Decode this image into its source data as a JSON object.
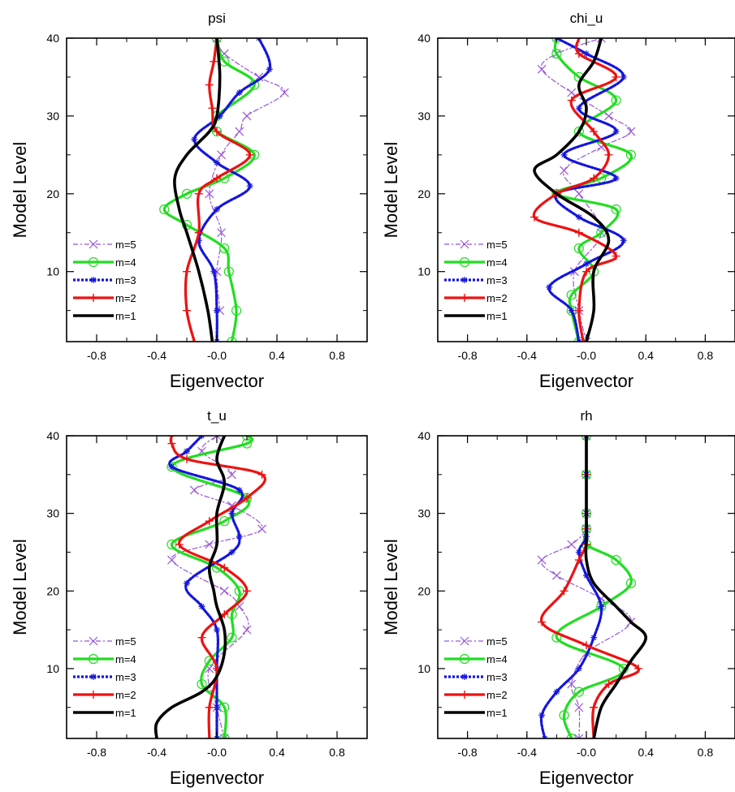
{
  "chart_data": [
    {
      "type": "line",
      "title": "psi",
      "xlabel": "Eigenvector",
      "ylabel": "Model Level",
      "xlim": [
        -1.0,
        1.0
      ],
      "ylim": [
        1,
        40
      ],
      "xticks": [
        "-0.8",
        "-0.4",
        "-0.0",
        "0.4",
        "0.8"
      ],
      "xtick_values": [
        -0.8,
        -0.4,
        0.0,
        0.4,
        0.8
      ],
      "yticks": [
        "10",
        "20",
        "30",
        "40"
      ],
      "ytick_values": [
        10,
        20,
        30,
        40
      ],
      "legend_position": "bottom-left",
      "series": [
        {
          "name": "m=5",
          "color": "#9955dd",
          "marker": "x",
          "levels": [
            5,
            10,
            15,
            20,
            25,
            28,
            30,
            33,
            35,
            38,
            40
          ],
          "values": [
            0.02,
            0.0,
            0.03,
            -0.05,
            0.03,
            0.15,
            0.2,
            0.45,
            0.28,
            0.05,
            0.0
          ]
        },
        {
          "name": "m=4",
          "color": "#22dd22",
          "marker": "circle",
          "levels": [
            1,
            5,
            10,
            13,
            16,
            18,
            20,
            22,
            25,
            28,
            30,
            34,
            37,
            40
          ],
          "values": [
            0.1,
            0.13,
            0.08,
            0.05,
            -0.2,
            -0.35,
            -0.2,
            0.05,
            0.25,
            0.0,
            0.0,
            0.25,
            0.05,
            0.0
          ]
        },
        {
          "name": "m=3",
          "color": "#1515dd",
          "marker": "star",
          "levels": [
            1,
            5,
            10,
            14,
            18,
            21,
            24,
            27,
            30,
            33,
            36,
            40
          ],
          "values": [
            0.0,
            0.0,
            -0.02,
            -0.12,
            0.0,
            0.22,
            0.0,
            -0.15,
            0.02,
            0.15,
            0.35,
            0.28
          ]
        },
        {
          "name": "m=2",
          "color": "#ee1111",
          "marker": "plus",
          "levels": [
            1,
            5,
            10,
            15,
            20,
            22,
            25,
            28,
            31,
            34,
            37,
            40
          ],
          "values": [
            -0.15,
            -0.2,
            -0.2,
            -0.12,
            -0.12,
            0.0,
            0.22,
            0.0,
            -0.03,
            -0.05,
            -0.02,
            0.0
          ]
        },
        {
          "name": "m=1",
          "color": "#000000",
          "marker": "none",
          "levels": [
            1,
            5,
            10,
            15,
            18,
            22,
            25,
            28,
            30,
            35,
            40
          ],
          "values": [
            -0.03,
            -0.06,
            -0.12,
            -0.2,
            -0.25,
            -0.28,
            -0.2,
            -0.05,
            0.0,
            0.02,
            0.0
          ]
        }
      ]
    },
    {
      "type": "line",
      "title": "chi_u",
      "xlabel": "Eigenvector",
      "ylabel": "Model Level",
      "xlim": [
        -1.0,
        1.0
      ],
      "ylim": [
        1,
        40
      ],
      "xticks": [
        "-0.8",
        "-0.4",
        "-0.0",
        "0.4",
        "0.8"
      ],
      "xtick_values": [
        -0.8,
        -0.4,
        0.0,
        0.4,
        0.8
      ],
      "yticks": [
        "10",
        "20",
        "30",
        "40"
      ],
      "ytick_values": [
        10,
        20,
        30,
        40
      ],
      "legend_position": "bottom-left",
      "series": [
        {
          "name": "m=5",
          "color": "#9955dd",
          "marker": "x",
          "levels": [
            1,
            5,
            10,
            15,
            20,
            23,
            26,
            28,
            30,
            33,
            36,
            38,
            40
          ],
          "values": [
            0.0,
            -0.05,
            -0.08,
            0.1,
            -0.05,
            -0.15,
            0.1,
            0.3,
            0.15,
            -0.1,
            -0.3,
            -0.2,
            0.1
          ]
        },
        {
          "name": "m=4",
          "color": "#22dd22",
          "marker": "circle",
          "levels": [
            1,
            5,
            7,
            10,
            13,
            15,
            18,
            20,
            22,
            25,
            28,
            32,
            35,
            38,
            40
          ],
          "values": [
            -0.05,
            -0.1,
            -0.1,
            0.05,
            -0.05,
            0.1,
            0.2,
            -0.2,
            0.1,
            0.3,
            -0.05,
            0.2,
            -0.05,
            -0.2,
            -0.2
          ]
        },
        {
          "name": "m=3",
          "color": "#1515dd",
          "marker": "star",
          "levels": [
            1,
            5,
            8,
            11,
            14,
            17,
            20,
            22,
            25,
            28,
            31,
            35,
            38,
            40
          ],
          "values": [
            -0.05,
            -0.1,
            -0.25,
            0.0,
            0.25,
            -0.05,
            -0.2,
            0.2,
            -0.15,
            0.2,
            -0.05,
            0.25,
            0.0,
            -0.2
          ]
        },
        {
          "name": "m=2",
          "color": "#ee1111",
          "marker": "plus",
          "levels": [
            1,
            5,
            10,
            12,
            15,
            17,
            20,
            22,
            25,
            28,
            32,
            35,
            38,
            40
          ],
          "values": [
            -0.02,
            -0.05,
            0.0,
            0.2,
            -0.05,
            -0.35,
            -0.2,
            0.05,
            0.15,
            0.05,
            -0.1,
            0.2,
            -0.05,
            -0.05
          ]
        },
        {
          "name": "m=1",
          "color": "#000000",
          "marker": "none",
          "levels": [
            1,
            5,
            10,
            14,
            17,
            20,
            23,
            25,
            28,
            31,
            34,
            37,
            40
          ],
          "values": [
            0.0,
            0.05,
            0.05,
            0.15,
            0.05,
            -0.2,
            -0.35,
            -0.2,
            -0.05,
            0.0,
            -0.05,
            0.05,
            0.1
          ]
        }
      ]
    },
    {
      "type": "line",
      "title": "t_u",
      "xlabel": "Eigenvector",
      "ylabel": "Model Level",
      "xlim": [
        -1.0,
        1.0
      ],
      "ylim": [
        1,
        40
      ],
      "xticks": [
        "-0.8",
        "-0.4",
        "-0.0",
        "0.4",
        "0.8"
      ],
      "xtick_values": [
        -0.8,
        -0.4,
        0.0,
        0.4,
        0.8
      ],
      "yticks": [
        "10",
        "20",
        "30",
        "40"
      ],
      "ytick_values": [
        10,
        20,
        30,
        40
      ],
      "legend_position": "bottom-left",
      "series": [
        {
          "name": "m=5",
          "color": "#9955dd",
          "marker": "x",
          "levels": [
            1,
            5,
            10,
            15,
            18,
            20,
            24,
            26,
            28,
            31,
            33,
            35,
            38,
            40
          ],
          "values": [
            0.05,
            0.0,
            -0.05,
            0.2,
            0.15,
            0.05,
            -0.3,
            -0.05,
            0.3,
            0.1,
            -0.15,
            0.1,
            -0.1,
            0.0
          ]
        },
        {
          "name": "m=4",
          "color": "#22dd22",
          "marker": "circle",
          "levels": [
            1,
            5,
            8,
            11,
            14,
            17,
            20,
            23,
            26,
            29,
            32,
            36,
            39,
            40
          ],
          "values": [
            0.05,
            0.05,
            -0.1,
            -0.05,
            0.1,
            0.1,
            0.15,
            0.0,
            -0.3,
            0.05,
            0.2,
            -0.3,
            0.2,
            0.2
          ]
        },
        {
          "name": "m=3",
          "color": "#1515dd",
          "marker": "star",
          "levels": [
            1,
            5,
            10,
            15,
            18,
            21,
            25,
            27,
            30,
            33,
            36,
            38,
            40
          ],
          "values": [
            0.0,
            0.0,
            0.0,
            0.0,
            -0.1,
            -0.2,
            0.1,
            0.15,
            0.1,
            0.15,
            -0.3,
            -0.2,
            -0.1
          ]
        },
        {
          "name": "m=2",
          "color": "#ee1111",
          "marker": "plus",
          "levels": [
            1,
            5,
            10,
            14,
            17,
            20,
            23,
            26,
            29,
            32,
            35,
            37,
            39,
            40
          ],
          "values": [
            -0.05,
            -0.05,
            0.0,
            -0.1,
            0.05,
            0.2,
            0.05,
            -0.25,
            -0.05,
            0.2,
            0.3,
            -0.2,
            -0.3,
            -0.3
          ]
        },
        {
          "name": "m=1",
          "color": "#000000",
          "marker": "none",
          "levels": [
            1,
            3,
            5,
            7,
            9,
            12,
            15,
            18,
            20,
            23,
            26,
            30,
            34,
            37,
            40
          ],
          "values": [
            -0.4,
            -0.4,
            -0.3,
            -0.1,
            0.0,
            0.05,
            0.05,
            0.0,
            -0.02,
            -0.05,
            0.0,
            0.0,
            0.05,
            0.0,
            0.05
          ]
        }
      ]
    },
    {
      "type": "line",
      "title": "rh",
      "xlabel": "Eigenvector",
      "ylabel": "Model Level",
      "xlim": [
        -1.0,
        1.0
      ],
      "ylim": [
        1,
        40
      ],
      "xticks": [
        "-0.8",
        "-0.4",
        "-0.0",
        "0.4",
        "0.8"
      ],
      "xtick_values": [
        -0.8,
        -0.4,
        0.0,
        0.4,
        0.8
      ],
      "yticks": [
        "10",
        "20",
        "30",
        "40"
      ],
      "ytick_values": [
        10,
        20,
        30,
        40
      ],
      "legend_position": "bottom-left",
      "series": [
        {
          "name": "m=5",
          "color": "#9955dd",
          "marker": "x",
          "levels": [
            1,
            5,
            8,
            12,
            16,
            19,
            22,
            24,
            26,
            28,
            30,
            35,
            40
          ],
          "values": [
            -0.05,
            -0.05,
            -0.1,
            0.0,
            0.3,
            0.1,
            -0.2,
            -0.3,
            -0.1,
            0.0,
            0.0,
            0.0,
            0.0
          ]
        },
        {
          "name": "m=4",
          "color": "#22dd22",
          "marker": "circle",
          "levels": [
            1,
            4,
            7,
            10,
            14,
            18,
            21,
            24,
            26,
            28,
            30,
            35,
            40
          ],
          "values": [
            -0.1,
            -0.15,
            -0.05,
            0.25,
            -0.2,
            0.1,
            0.3,
            0.2,
            0.0,
            0.0,
            0.0,
            0.0,
            0.0
          ]
        },
        {
          "name": "m=3",
          "color": "#1515dd",
          "marker": "star",
          "levels": [
            1,
            4,
            7,
            10,
            14,
            18,
            22,
            25,
            27,
            30,
            35,
            40
          ],
          "values": [
            -0.28,
            -0.3,
            -0.2,
            -0.05,
            0.05,
            0.1,
            0.0,
            -0.05,
            0.0,
            0.0,
            0.0,
            0.0
          ]
        },
        {
          "name": "m=2",
          "color": "#ee1111",
          "marker": "plus",
          "levels": [
            1,
            5,
            8,
            10,
            13,
            16,
            20,
            24,
            26,
            28,
            30,
            35,
            40
          ],
          "values": [
            0.05,
            0.05,
            0.15,
            0.35,
            0.0,
            -0.3,
            -0.15,
            -0.05,
            0.0,
            0.0,
            0.0,
            0.0,
            0.0
          ]
        },
        {
          "name": "m=1",
          "color": "#000000",
          "marker": "none",
          "levels": [
            1,
            5,
            8,
            11,
            14,
            16,
            18,
            21,
            24,
            27,
            30,
            35,
            40
          ],
          "values": [
            0.05,
            0.1,
            0.2,
            0.3,
            0.4,
            0.3,
            0.2,
            0.05,
            0.0,
            0.0,
            0.0,
            0.0,
            0.0
          ]
        }
      ]
    }
  ]
}
